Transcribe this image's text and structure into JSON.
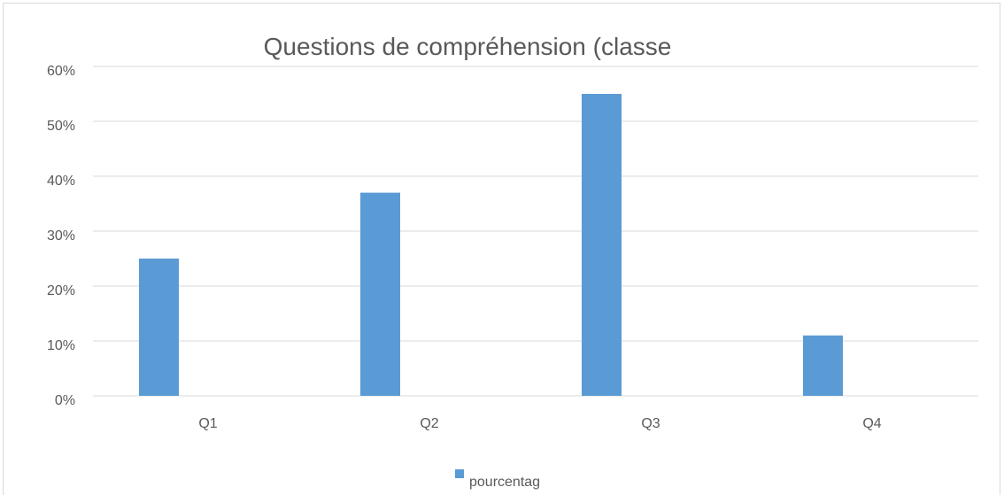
{
  "chart_data": {
    "type": "bar",
    "title": "Questions de compréhension (classe",
    "categories": [
      "Q1",
      "Q2",
      "Q3",
      "Q4"
    ],
    "series": [
      {
        "name": "pourcentag",
        "color": "#5b9bd5",
        "values": [
          25,
          37,
          55,
          11
        ]
      }
    ],
    "ylim": [
      0,
      60
    ],
    "yticks": [
      {
        "value": 0,
        "label": "0%"
      },
      {
        "value": 10,
        "label": "10%"
      },
      {
        "value": 20,
        "label": "20%"
      },
      {
        "value": 30,
        "label": "30%"
      },
      {
        "value": 40,
        "label": "40%"
      },
      {
        "value": 50,
        "label": "50%"
      },
      {
        "value": 60,
        "label": "60%"
      }
    ],
    "grid": true,
    "legend": "bottom"
  }
}
